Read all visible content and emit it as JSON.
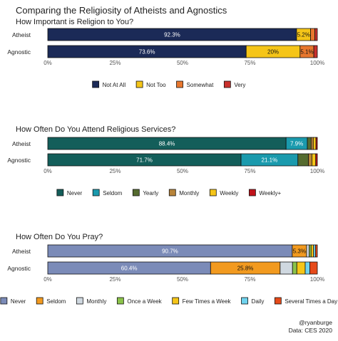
{
  "title": "Comparing the Religiosity of Atheists and Agnostics",
  "credit_handle": "@ryanburge",
  "credit_data": "Data: CES 2020",
  "chart_data": [
    {
      "type": "bar",
      "orientation": "horizontal",
      "stacked": true,
      "subtitle": "How Important is Religion to You?",
      "categories": [
        "Atheist",
        "Agnostic"
      ],
      "xlim": [
        0,
        100
      ],
      "xticks": [
        "0%",
        "25%",
        "50%",
        "75%",
        "100%"
      ],
      "series": [
        {
          "name": "Not At All",
          "color": "#1b2a57",
          "values": [
            92.3,
            73.6
          ],
          "labels": [
            "92.3%",
            "73.6%"
          ]
        },
        {
          "name": "Not Too",
          "color": "#f5c518",
          "values": [
            5.2,
            20.0
          ],
          "labels": [
            "5.2%",
            "20%"
          ]
        },
        {
          "name": "Somewhat",
          "color": "#e8772e",
          "values": [
            1.6,
            5.1
          ],
          "labels": [
            "",
            "5.1%"
          ]
        },
        {
          "name": "Very",
          "color": "#c9302c",
          "values": [
            0.9,
            1.3
          ],
          "labels": [
            "",
            ""
          ]
        }
      ],
      "legend_position": "bottom"
    },
    {
      "type": "bar",
      "orientation": "horizontal",
      "stacked": true,
      "subtitle": "How Often Do You Attend Religious Services?",
      "categories": [
        "Atheist",
        "Agnostic"
      ],
      "xlim": [
        0,
        100
      ],
      "xticks": [
        "0%",
        "25%",
        "50%",
        "75%",
        "100%"
      ],
      "series": [
        {
          "name": "Never",
          "color": "#135e5a",
          "values": [
            88.4,
            71.7
          ],
          "labels": [
            "88.4%",
            "71.7%"
          ]
        },
        {
          "name": "Seldom",
          "color": "#1a9aad",
          "values": [
            7.9,
            21.1
          ],
          "labels": [
            "7.9%",
            "21.1%"
          ]
        },
        {
          "name": "Yearly",
          "color": "#556b2f",
          "values": [
            1.4,
            3.9
          ],
          "labels": [
            "",
            ""
          ]
        },
        {
          "name": "Monthly",
          "color": "#b8843a",
          "values": [
            0.8,
            1.3
          ],
          "labels": [
            "",
            ""
          ]
        },
        {
          "name": "Weekly",
          "color": "#f5c518",
          "values": [
            1.0,
            1.4
          ],
          "labels": [
            "",
            ""
          ]
        },
        {
          "name": "Weekly+",
          "color": "#c0131b",
          "values": [
            0.5,
            0.6
          ],
          "labels": [
            "",
            ""
          ]
        }
      ],
      "legend_position": "bottom"
    },
    {
      "type": "bar",
      "orientation": "horizontal",
      "stacked": true,
      "subtitle": "How Often Do You Pray?",
      "categories": [
        "Atheist",
        "Agnostic"
      ],
      "xlim": [
        0,
        100
      ],
      "xticks": [
        "0%",
        "25%",
        "50%",
        "75%",
        "100%"
      ],
      "series": [
        {
          "name": "Never",
          "color": "#7b8bb8",
          "values": [
            90.7,
            60.4
          ],
          "labels": [
            "90.7%",
            "60.4%"
          ]
        },
        {
          "name": "Seldom",
          "color": "#f29a1f",
          "values": [
            5.3,
            25.8
          ],
          "labels": [
            "5.3%",
            "25.8%"
          ]
        },
        {
          "name": "Monthly",
          "color": "#cfd8e0",
          "values": [
            1.0,
            4.6
          ],
          "labels": [
            "",
            ""
          ]
        },
        {
          "name": "Once a Week",
          "color": "#8bc34a",
          "values": [
            0.7,
            1.6
          ],
          "labels": [
            "",
            ""
          ]
        },
        {
          "name": "Few Times a Week",
          "color": "#f5c518",
          "values": [
            0.9,
            3.1
          ],
          "labels": [
            "",
            ""
          ]
        },
        {
          "name": "Daily",
          "color": "#6fd3ee",
          "values": [
            0.7,
            1.7
          ],
          "labels": [
            "",
            ""
          ]
        },
        {
          "name": "Several Times a Day",
          "color": "#e64a19",
          "values": [
            0.7,
            2.8
          ],
          "labels": [
            "",
            ""
          ]
        }
      ],
      "legend_position": "bottom"
    }
  ]
}
